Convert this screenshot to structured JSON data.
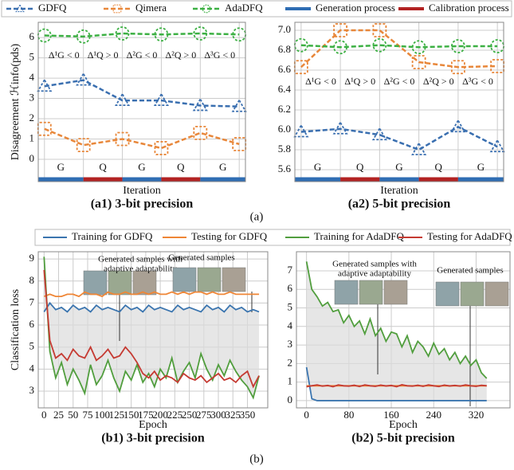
{
  "panel_labels": [
    "(a)",
    "(b)"
  ],
  "chart_data": [
    {
      "type": "line",
      "ylabel": "Disagreement ℋinfo(pds)",
      "xlabel": "Iteration",
      "caption": "(a1) 3-bit precision",
      "categories": [
        null,
        null,
        null,
        null,
        null,
        null
      ],
      "ylim": [
        -1.1,
        6.75
      ],
      "yticks": [
        0,
        1,
        2,
        3,
        4,
        5,
        6
      ],
      "grid": true,
      "series": [
        {
          "name": "GDFQ",
          "color": "#3a6fb0",
          "marker": "triangle",
          "dash": true,
          "values": [
            3.6,
            3.9,
            2.9,
            2.9,
            2.65,
            2.6
          ]
        },
        {
          "name": "Qimera",
          "color": "#e8873a",
          "marker": "square",
          "dash": true,
          "values": [
            1.5,
            0.7,
            1.0,
            0.55,
            1.3,
            0.75
          ]
        },
        {
          "name": "AdaDFQ",
          "color": "#3cb043",
          "marker": "circle",
          "dash": true,
          "values": [
            6.1,
            6.05,
            6.2,
            6.15,
            6.2,
            6.15
          ]
        }
      ],
      "phase_legend": [
        {
          "name": "Generation process",
          "color": "#2f6db3"
        },
        {
          "name": "Calibration process",
          "color": "#b22222"
        }
      ],
      "phases": [
        {
          "label": "G",
          "process": 0
        },
        {
          "label": "Q",
          "process": 1
        },
        {
          "label": "G",
          "process": 0
        },
        {
          "label": "Q",
          "process": 1
        },
        {
          "label": "G",
          "process": 0
        }
      ],
      "annotations": [
        "Δ¹G < 0",
        "Δ¹Q > 0",
        "Δ²G < 0",
        "Δ²Q > 0",
        "Δ³G < 0"
      ]
    },
    {
      "type": "line",
      "xlabel": "Iteration",
      "caption": "(a2) 5-bit precision",
      "categories": [
        null,
        null,
        null,
        null,
        null,
        null
      ],
      "ylim": [
        5.48,
        7.08
      ],
      "yticks": [
        5.6,
        5.8,
        {
          "value": 6,
          "label": "6.0"
        },
        6.2,
        6.4,
        6.6,
        6.8,
        {
          "value": 7,
          "label": "7.0"
        }
      ],
      "grid": true,
      "series": [
        {
          "color": "#3a6fb0",
          "marker": "triangle",
          "dash": true,
          "values": [
            5.98,
            6.01,
            5.95,
            5.8,
            6.03,
            5.83
          ]
        },
        {
          "color": "#e8873a",
          "marker": "square",
          "dash": true,
          "values": [
            6.63,
            7.0,
            7.0,
            6.68,
            6.63,
            6.64
          ]
        },
        {
          "color": "#3cb043",
          "marker": "circle",
          "dash": true,
          "values": [
            6.85,
            6.83,
            6.85,
            6.83,
            6.84,
            6.84
          ]
        }
      ],
      "phases": [
        {
          "label": "G",
          "process": 0
        },
        {
          "label": "Q",
          "process": 1
        },
        {
          "label": "G",
          "process": 0
        },
        {
          "label": "Q",
          "process": 1
        },
        {
          "label": "G",
          "process": 0
        }
      ],
      "annotations": [
        "Δ¹G < 0",
        "Δ¹Q > 0",
        "Δ²G < 0",
        "Δ²Q > 0",
        "Δ³G < 0"
      ]
    },
    {
      "type": "line",
      "ylabel": "Classification loss",
      "xlabel": "Epoch",
      "caption": "(b1) 3-bit precision",
      "x": [
        0,
        10,
        20,
        30,
        40,
        50,
        60,
        70,
        80,
        90,
        100,
        110,
        120,
        130,
        140,
        150,
        160,
        170,
        180,
        190,
        200,
        210,
        220,
        230,
        240,
        250,
        260,
        270,
        280,
        290,
        300,
        310,
        320,
        330,
        340,
        350,
        360,
        370
      ],
      "xlim": [
        -10,
        385
      ],
      "xticks": [
        0,
        25,
        50,
        75,
        100,
        125,
        150,
        175,
        200,
        225,
        250,
        275,
        300,
        325,
        350
      ],
      "ylim": [
        2.24,
        9.33
      ],
      "yticks": [
        3,
        4,
        5,
        6,
        7,
        8,
        9
      ],
      "grid": true,
      "shade_between": [
        0,
        2
      ],
      "series": [
        {
          "name": "Training for GDFQ",
          "color": "#3b75af",
          "values": [
            6.6,
            7.0,
            6.7,
            6.8,
            6.6,
            6.9,
            6.7,
            6.8,
            6.6,
            6.9,
            6.7,
            6.8,
            6.7,
            6.6,
            6.9,
            6.7,
            6.8,
            6.6,
            6.9,
            6.7,
            6.8,
            6.7,
            6.6,
            6.9,
            6.7,
            6.8,
            6.7,
            6.6,
            6.9,
            6.7,
            6.8,
            6.6,
            6.9,
            6.7,
            6.8,
            6.6,
            6.7,
            6.6
          ]
        },
        {
          "name": "Testing for GDFQ",
          "color": "#ef8636",
          "values": [
            7.3,
            7.4,
            7.3,
            7.3,
            7.4,
            7.4,
            7.3,
            7.5,
            7.4,
            7.4,
            7.3,
            7.5,
            7.4,
            7.4,
            7.5,
            7.4,
            7.4,
            7.5,
            7.4,
            7.5,
            7.4,
            7.4,
            7.5,
            7.4,
            7.5,
            7.4,
            7.5,
            7.5,
            7.4,
            7.5,
            7.4,
            7.4,
            7.5,
            7.4,
            7.4,
            7.4,
            7.4,
            7.4
          ]
        },
        {
          "name": "Training for AdaDFQ",
          "color": "#519e3e",
          "values": [
            9.1,
            4.8,
            3.6,
            4.3,
            3.3,
            4.0,
            3.5,
            2.9,
            4.2,
            3.3,
            3.7,
            4.4,
            3.6,
            3.0,
            3.9,
            3.5,
            4.2,
            3.4,
            3.8,
            3.2,
            4.0,
            3.6,
            4.5,
            3.4,
            3.9,
            4.3,
            3.6,
            4.7,
            4.0,
            3.5,
            4.2,
            3.7,
            4.4,
            3.9,
            3.5,
            3.2,
            2.7,
            3.7
          ]
        },
        {
          "name": "Testing for AdaDFQ",
          "color": "#c53a32",
          "values": [
            8.5,
            5.3,
            4.5,
            4.7,
            4.4,
            4.9,
            4.6,
            4.5,
            5.0,
            4.4,
            4.6,
            4.9,
            4.5,
            4.6,
            5.0,
            4.7,
            4.3,
            3.8,
            3.6,
            3.9,
            3.5,
            3.7,
            3.6,
            3.4,
            3.8,
            3.6,
            3.5,
            3.7,
            3.4,
            3.6,
            3.8,
            3.5,
            3.6,
            3.4,
            3.7,
            3.9,
            3.2,
            3.7
          ]
        }
      ],
      "annotations": [
        {
          "lines": [
            "Generated samples with",
            "adaptive adaptability"
          ]
        },
        {
          "lines": [
            "Generated samples"
          ]
        }
      ]
    },
    {
      "type": "line",
      "xlabel": "Epoch",
      "caption": "(b2) 5-bit precision",
      "x": [
        0,
        10,
        20,
        30,
        40,
        50,
        60,
        70,
        80,
        90,
        100,
        110,
        120,
        130,
        140,
        150,
        160,
        170,
        180,
        190,
        200,
        210,
        220,
        230,
        240,
        250,
        260,
        270,
        280,
        290,
        300,
        310,
        320,
        330,
        340
      ],
      "xlim": [
        -19,
        384
      ],
      "xticks": [
        0,
        80,
        160,
        240,
        320
      ],
      "ylim": [
        -0.39,
        8.03
      ],
      "yticks": [
        0,
        1,
        2,
        3,
        4,
        5,
        6,
        7
      ],
      "grid": true,
      "shade_between": [
        2,
        0
      ],
      "series": [
        {
          "color": "#3b75af",
          "values": [
            1.8,
            0.1,
            0,
            0,
            0,
            0,
            0,
            0,
            0,
            0,
            0,
            0,
            0,
            0,
            0,
            0,
            0,
            0,
            0,
            0,
            0,
            0,
            0,
            0,
            0,
            0,
            0,
            0,
            0,
            0,
            0,
            0,
            0,
            0,
            0
          ]
        },
        {
          "color": "#ef8636",
          "values": [
            0.8,
            0.8,
            0.8,
            0.8,
            0.8,
            0.8,
            0.8,
            0.8,
            0.8,
            0.8,
            0.8,
            0.8,
            0.8,
            0.8,
            0.8,
            0.8,
            0.8,
            0.8,
            0.8,
            0.8,
            0.8,
            0.8,
            0.8,
            0.8,
            0.8,
            0.8,
            0.8,
            0.8,
            0.8,
            0.8,
            0.8,
            0.8,
            0.8,
            0.8,
            0.8
          ]
        },
        {
          "color": "#519e3e",
          "values": [
            7.5,
            6.0,
            5.6,
            5.1,
            5.3,
            4.8,
            4.9,
            4.2,
            4.6,
            4.0,
            4.3,
            3.6,
            4.4,
            3.5,
            3.9,
            3.2,
            3.7,
            3.6,
            2.9,
            3.5,
            2.6,
            3.2,
            2.9,
            2.4,
            3.1,
            2.5,
            2.8,
            2.2,
            2.6,
            2.0,
            2.4,
            1.9,
            2.2,
            1.5,
            1.2
          ]
        },
        {
          "color": "#c53a32",
          "values": [
            0.75,
            0.8,
            0.85,
            0.78,
            0.82,
            0.75,
            0.85,
            0.8,
            0.78,
            0.83,
            0.76,
            0.85,
            0.8,
            0.77,
            0.84,
            0.79,
            0.82,
            0.75,
            0.86,
            0.8,
            0.78,
            0.83,
            0.77,
            0.85,
            0.8,
            0.76,
            0.84,
            0.79,
            0.82,
            0.78,
            0.85,
            0.8,
            0.77,
            0.83,
            0.8
          ]
        }
      ],
      "annotations": [
        {
          "lines": [
            "Generated samples with",
            "adaptive adaptability"
          ]
        },
        {
          "lines": [
            "Generated samples"
          ]
        }
      ]
    }
  ]
}
